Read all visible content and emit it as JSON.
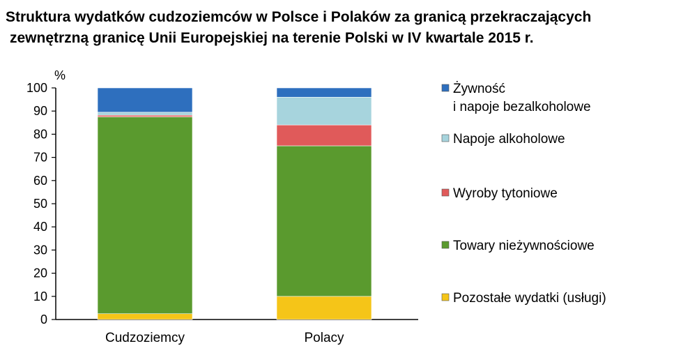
{
  "chart_data": {
    "type": "bar",
    "stacked": true,
    "title": "Struktura wydatków cudzoziemców w Polsce i Polaków za granicą przekraczających",
    "title_line2": "zewnętrzną granicę Unii Europejskiej na terenie Polski w IV kwartale 2015 r.",
    "ylabel": "%",
    "ylim": [
      0,
      100
    ],
    "yticks": [
      0,
      10,
      20,
      30,
      40,
      50,
      60,
      70,
      80,
      90,
      100
    ],
    "categories": [
      "Cudzoziemcy",
      "Polacy"
    ],
    "series": [
      {
        "name": "Pozostałe wydatki (usługi)",
        "color": "#f5c518",
        "values": [
          2.5,
          10.0
        ]
      },
      {
        "name": "Towary nieżywnościowe",
        "color": "#5a9a2e",
        "values": [
          85.0,
          65.0
        ]
      },
      {
        "name": "Wyroby tytoniowe",
        "color": "#e05a5a",
        "values": [
          0.7,
          9.0
        ]
      },
      {
        "name": "Napoje alkoholowe",
        "color": "#a7d4dd",
        "values": [
          1.3,
          12.0
        ]
      },
      {
        "name": "Żywność i napoje bezalkoholowe",
        "color": "#2e6fbe",
        "values": [
          10.5,
          4.0
        ]
      }
    ],
    "legend": [
      {
        "lines": [
          "Żywność",
          "i napoje bezalkoholowe"
        ],
        "color": "#2e6fbe"
      },
      {
        "lines": [
          "Napoje alkoholowe"
        ],
        "color": "#a7d4dd"
      },
      {
        "lines": [
          "Wyroby tytoniowe"
        ],
        "color": "#e05a5a"
      },
      {
        "lines": [
          "Towary nieżywnościowe"
        ],
        "color": "#5a9a2e"
      },
      {
        "lines": [
          "Pozostałe wydatki (usługi)"
        ],
        "color": "#f5c518"
      }
    ],
    "legend_position": "right",
    "grid": false
  }
}
